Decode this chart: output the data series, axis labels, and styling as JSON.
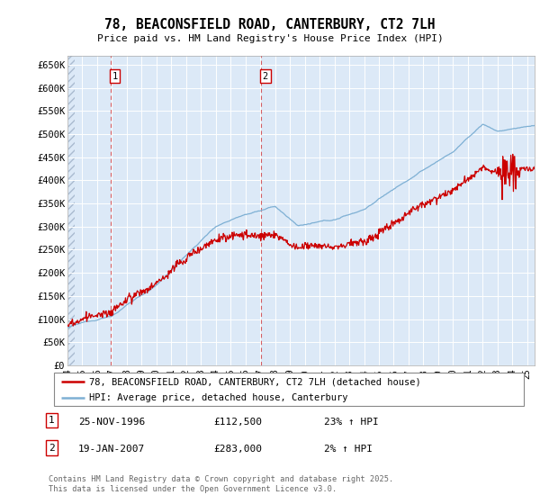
{
  "title": "78, BEACONSFIELD ROAD, CANTERBURY, CT2 7LH",
  "subtitle": "Price paid vs. HM Land Registry's House Price Index (HPI)",
  "yticks": [
    0,
    50000,
    100000,
    150000,
    200000,
    250000,
    300000,
    350000,
    400000,
    450000,
    500000,
    550000,
    600000,
    650000
  ],
  "ytick_labels": [
    "£0",
    "£50K",
    "£100K",
    "£150K",
    "£200K",
    "£250K",
    "£300K",
    "£350K",
    "£400K",
    "£450K",
    "£500K",
    "£550K",
    "£600K",
    "£650K"
  ],
  "plot_bg_color": "#dce9f7",
  "grid_color": "#ffffff",
  "line_color_hpi": "#7eb0d4",
  "line_color_price": "#cc0000",
  "sale1_x": 1996.9,
  "sale1_price": 112500,
  "sale2_x": 2007.05,
  "sale2_price": 283000,
  "legend_line1": "78, BEACONSFIELD ROAD, CANTERBURY, CT2 7LH (detached house)",
  "legend_line2": "HPI: Average price, detached house, Canterbury",
  "ann1_label": "1",
  "ann1_date": "25-NOV-1996",
  "ann1_price": "£112,500",
  "ann1_hpi": "23% ↑ HPI",
  "ann2_label": "2",
  "ann2_date": "19-JAN-2007",
  "ann2_price": "£283,000",
  "ann2_hpi": "2% ↑ HPI",
  "footer": "Contains HM Land Registry data © Crown copyright and database right 2025.\nThis data is licensed under the Open Government Licence v3.0."
}
